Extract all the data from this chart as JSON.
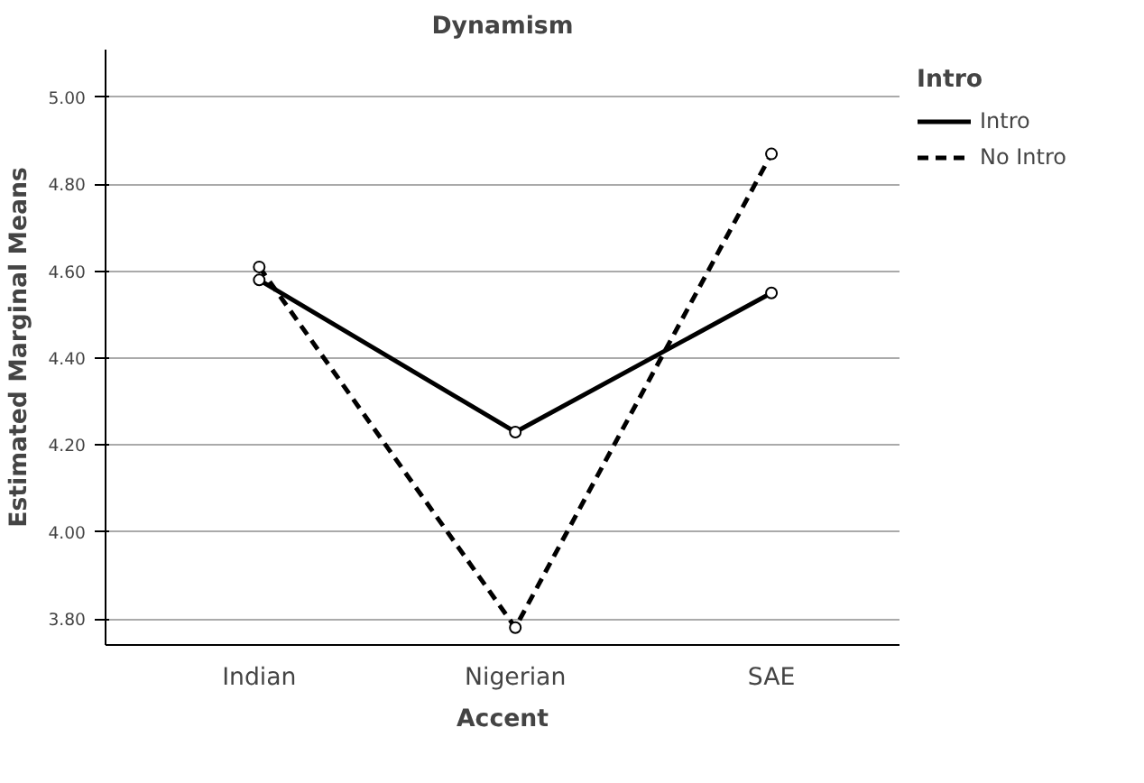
{
  "chart_data": {
    "type": "line",
    "title": "Dynamism",
    "xlabel": "Accent",
    "ylabel": "Estimated Marginal Means",
    "legend_title": "Intro",
    "categories": [
      "Indian",
      "Nigerian",
      "SAE"
    ],
    "series": [
      {
        "name": "Intro",
        "color": "#000000",
        "line_style": "solid",
        "values": [
          4.58,
          4.23,
          4.55
        ]
      },
      {
        "name": "No Intro",
        "color": "#000000",
        "line_style": "dashed",
        "values": [
          4.61,
          3.78,
          4.87
        ]
      }
    ],
    "ylim": [
      3.74,
      5.11
    ],
    "yticks": [
      {
        "value": 3.8,
        "label": "3.80"
      },
      {
        "value": 4.0,
        "label": "4.00"
      },
      {
        "value": 4.2,
        "label": "4.20"
      },
      {
        "value": 4.4,
        "label": "4.40"
      },
      {
        "value": 4.6,
        "label": "4.60"
      },
      {
        "value": 4.8,
        "label": "4.80"
      },
      {
        "value": 5.0,
        "label": "5.00"
      }
    ],
    "grid": "y",
    "legend": "top right",
    "marker": "circle"
  }
}
